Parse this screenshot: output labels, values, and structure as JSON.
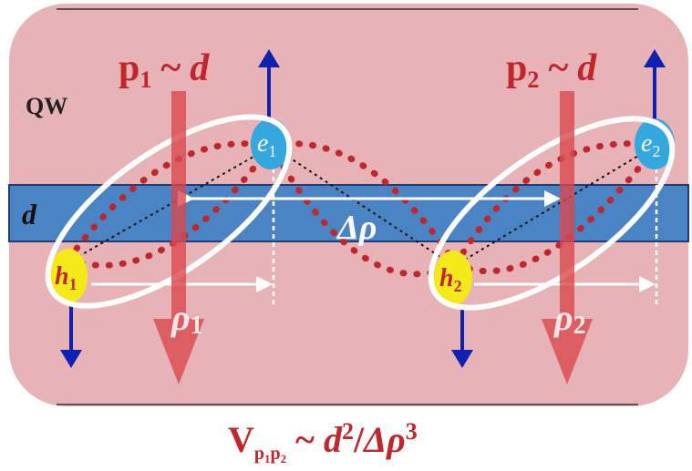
{
  "dipole_1": {
    "base": "p",
    "sub": "1",
    "rel": "~",
    "var": "d"
  },
  "dipole_2": {
    "base": "p",
    "sub": "2",
    "rel": "~",
    "var": "d"
  },
  "layer_label": "QW",
  "width_label": "d",
  "electron_1": {
    "base": "e",
    "sub": "1"
  },
  "electron_2": {
    "base": "e",
    "sub": "2"
  },
  "hole_1": {
    "base": "h",
    "sub": "1"
  },
  "hole_2": {
    "base": "h",
    "sub": "2"
  },
  "separation_label": "Δρ",
  "rho_1": {
    "base": "ρ",
    "sub": "1"
  },
  "rho_2": {
    "base": "ρ",
    "sub": "2"
  },
  "formula": {
    "base": "V",
    "sub": [
      "p",
      "1",
      "p",
      "2"
    ],
    "rel": "~",
    "var": "d",
    "power": "2",
    "slash": "/",
    "denom": "Δρ",
    "denom_power": "3"
  }
}
